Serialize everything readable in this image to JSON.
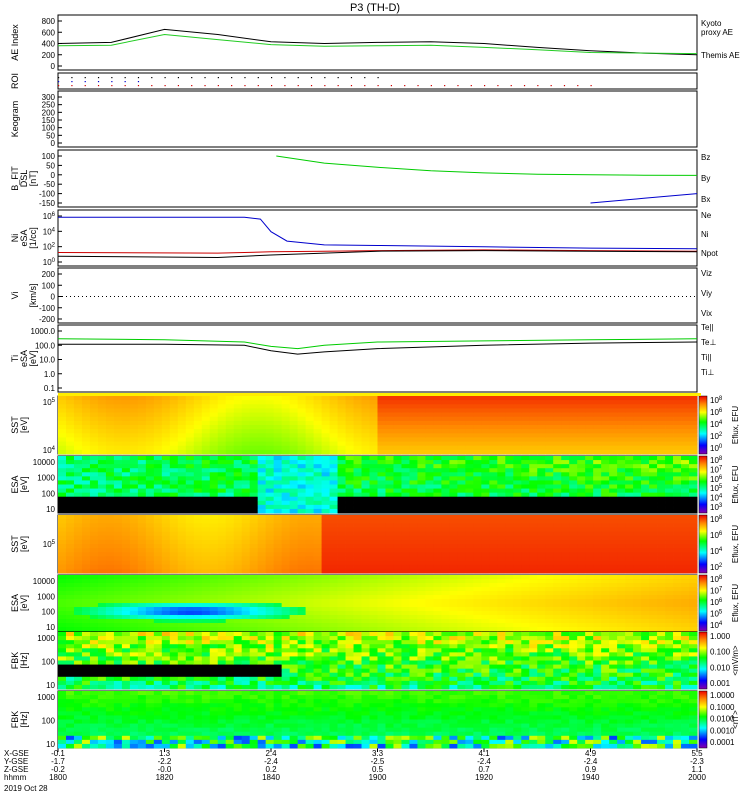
{
  "title": "P3 (TH-D)",
  "colors": {
    "black": "#000000",
    "red": "#cc0000",
    "green": "#00cc00",
    "blue": "#0000cc",
    "ae_black": "#000000",
    "ae_green": "#22cc22"
  },
  "chart_data": [
    {
      "type": "line",
      "panel": "ae",
      "ylabel": "AE Index",
      "ylim": [
        0,
        800
      ],
      "yticks": [
        "800",
        "600",
        "400",
        "200",
        "0"
      ],
      "legend": [
        "Kyoto",
        "proxy AE",
        "Themis AE"
      ],
      "x_minutes": [
        0,
        10,
        20,
        30,
        40,
        50,
        60,
        70,
        80,
        90,
        100,
        110,
        120
      ],
      "series": [
        {
          "name": "Themis AE",
          "color": "#000000",
          "values": [
            400,
            420,
            650,
            560,
            430,
            400,
            420,
            430,
            400,
            330,
            270,
            230,
            200
          ]
        },
        {
          "name": "Kyoto proxy AE",
          "color": "#22cc22",
          "values": [
            360,
            370,
            560,
            470,
            380,
            350,
            360,
            370,
            330,
            290,
            240,
            230,
            220
          ]
        }
      ]
    },
    {
      "type": "scatter",
      "panel": "roi",
      "ylabel": "ROI"
    },
    {
      "type": "line",
      "panel": "keogram",
      "ylabel": "Keogram",
      "yticks": [
        "300",
        "250",
        "200",
        "150",
        "100",
        "50",
        "0"
      ]
    },
    {
      "type": "line",
      "panel": "bfit",
      "ylabel": "B_FIT",
      "ylabel2": "DSL",
      "ylabel3": "[nT]",
      "ylim": [
        -150,
        100
      ],
      "yticks": [
        "100",
        "50",
        "0",
        "-50",
        "-100",
        "-150"
      ],
      "legend": [
        "Bz",
        "By",
        "Bx"
      ],
      "series": [
        {
          "name": "By",
          "color": "#00cc00",
          "x_minutes": [
            41,
            50,
            60,
            70,
            80,
            90,
            100,
            110,
            120
          ],
          "values": [
            100,
            62,
            40,
            22,
            10,
            3,
            0,
            -2,
            -3
          ]
        },
        {
          "name": "Bx",
          "color": "#0000cc",
          "x_minutes": [
            100,
            110,
            120
          ],
          "values": [
            -150,
            -125,
            -100
          ]
        }
      ]
    },
    {
      "type": "line",
      "panel": "ni",
      "ylabel": "Ni",
      "ylabel2": "eSA",
      "ylabel3": "[1/cc]",
      "yticks": [
        "10",
        "10",
        "10",
        "10"
      ],
      "ytick_exps": [
        "6",
        "4",
        "2",
        "0"
      ],
      "legend": [
        "Ne",
        "Ni",
        "Npot"
      ],
      "series": [
        {
          "name": "Ni",
          "color": "#0000cc",
          "x_minutes": [
            0,
            35,
            38,
            40,
            43,
            50,
            60,
            80,
            100,
            120
          ],
          "log_values": [
            5.8,
            5.8,
            5.5,
            3.5,
            2.0,
            1.4,
            1.3,
            1.1,
            0.9,
            0.8
          ]
        },
        {
          "name": "Ne",
          "color": "#cc0000",
          "x_minutes": [
            0,
            30,
            40,
            50,
            60,
            80,
            100,
            120
          ],
          "log_values": [
            0.2,
            0.1,
            0.3,
            0.4,
            0.5,
            0.6,
            0.5,
            0.4
          ]
        },
        {
          "name": "Npot",
          "color": "#000000",
          "x_minutes": [
            0,
            30,
            40,
            50,
            60,
            80,
            100,
            120
          ],
          "log_values": [
            -0.4,
            -0.6,
            -0.2,
            0.1,
            0.4,
            0.5,
            0.4,
            0.3
          ]
        }
      ]
    },
    {
      "type": "line",
      "panel": "vi",
      "ylabel": "Vi",
      "ylabel3": "[km/s]",
      "yticks": [
        "200",
        "100",
        "0",
        "-100",
        "-200"
      ],
      "legend": [
        "Viz",
        "Viy",
        "Vix"
      ]
    },
    {
      "type": "line",
      "panel": "ti",
      "ylabel": "Ti",
      "ylabel2": "eSA",
      "ylabel3": "[eV]",
      "yticks": [
        "1000.0",
        "100.0",
        "10.0",
        "1.0",
        "0.1"
      ],
      "legend": [
        "Te||",
        "Te⊥",
        "Ti||",
        "Ti⊥"
      ],
      "series": [
        {
          "name": "Ti||",
          "color": "#00cc00",
          "x_minutes": [
            0,
            20,
            35,
            40,
            45,
            50,
            60,
            80,
            100,
            120
          ],
          "log_values": [
            3.3,
            3.2,
            3.0,
            2.6,
            2.4,
            2.7,
            3.0,
            3.1,
            3.2,
            3.3
          ]
        },
        {
          "name": "Te||",
          "color": "#000000",
          "x_minutes": [
            0,
            20,
            35,
            40,
            45,
            50,
            60,
            80,
            100,
            120
          ],
          "log_values": [
            2.8,
            2.8,
            2.7,
            2.2,
            1.9,
            2.1,
            2.4,
            2.7,
            2.9,
            3.0
          ]
        }
      ]
    },
    {
      "type": "heatmap",
      "panel": "sst_e",
      "ylabel": "SST",
      "ylabel2": "[eV]",
      "yticks": [
        "10",
        "10"
      ],
      "ytick_exps": [
        "5",
        "4"
      ],
      "colorbar_label": "Eflux, EFU",
      "colorbar_ticks": [
        "10",
        "10",
        "10",
        "10",
        "10"
      ],
      "colorbar_exps": [
        "8",
        "6",
        "4",
        "2",
        "0"
      ]
    },
    {
      "type": "heatmap",
      "panel": "esa_e",
      "ylabel": "ESA",
      "ylabel2": "[eV]",
      "yticks": [
        "10000",
        "1000",
        "100",
        "10"
      ],
      "colorbar_label": "Eflux, EFU",
      "colorbar_ticks": [
        "10",
        "10",
        "10",
        "10",
        "10",
        "10"
      ],
      "colorbar_exps": [
        "8",
        "7",
        "6",
        "5",
        "4",
        "3"
      ]
    },
    {
      "type": "heatmap",
      "panel": "sst_i",
      "ylabel": "SST",
      "ylabel2": "[eV]",
      "yticks": [
        "10"
      ],
      "ytick_exps": [
        "5"
      ],
      "colorbar_label": "Eflux, EFU",
      "colorbar_ticks": [
        "10",
        "10",
        "10",
        "10"
      ],
      "colorbar_exps": [
        "8",
        "6",
        "4",
        "2"
      ]
    },
    {
      "type": "heatmap",
      "panel": "esa_i",
      "ylabel": "ESA",
      "ylabel2": "[eV]",
      "yticks": [
        "10000",
        "1000",
        "100",
        "10"
      ],
      "colorbar_label": "Eflux, EFU",
      "colorbar_ticks": [
        "10",
        "10",
        "10",
        "10",
        "10"
      ],
      "colorbar_exps": [
        "8",
        "7",
        "6",
        "5",
        "4"
      ]
    },
    {
      "type": "heatmap",
      "panel": "fbk_e",
      "ylabel": "FBK",
      "ylabel2": "[Hz]",
      "yticks": [
        "1000",
        "100",
        "10"
      ],
      "colorbar_label": "<mV/m>",
      "colorbar_ticks": [
        "1.000",
        "0.100",
        "0.010",
        "0.001"
      ]
    },
    {
      "type": "heatmap",
      "panel": "fbk_b",
      "ylabel": "FBK",
      "ylabel2": "[Hz]",
      "yticks": [
        "1000",
        "100",
        "10"
      ],
      "colorbar_label": "<nT>",
      "colorbar_ticks": [
        "1.0000",
        "0.1000",
        "0.0100",
        "0.0010",
        "0.0001"
      ]
    }
  ],
  "xaxis": {
    "row_labels": [
      "X-GSE",
      "Y-GSE",
      "Z-GSE",
      "hhmm",
      "2019 Oct 28"
    ],
    "columns": [
      {
        "values": [
          "-0.1",
          "-1.7",
          "-0.2",
          "1800"
        ]
      },
      {
        "values": [
          "1.3",
          "-2.2",
          "-0.0",
          "1820"
        ]
      },
      {
        "values": [
          "2.4",
          "-2.4",
          "0.2",
          "1840"
        ]
      },
      {
        "values": [
          "3.3",
          "-2.5",
          "0.5",
          "1900"
        ]
      },
      {
        "values": [
          "4.1",
          "-2.4",
          "0.7",
          "1920"
        ]
      },
      {
        "values": [
          "4.9",
          "-2.4",
          "0.9",
          "1940"
        ]
      },
      {
        "values": [
          "5.5",
          "-2.3",
          "1.1",
          "2000"
        ]
      }
    ]
  }
}
